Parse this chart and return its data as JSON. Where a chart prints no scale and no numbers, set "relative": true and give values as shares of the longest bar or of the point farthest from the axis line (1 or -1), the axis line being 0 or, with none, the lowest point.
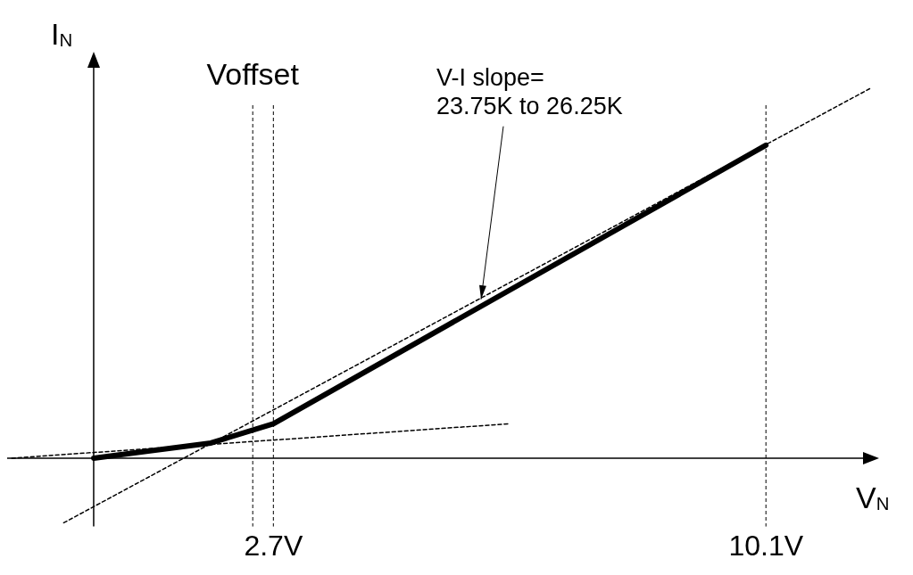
{
  "chart_data": {
    "type": "line",
    "relative": true,
    "xlabel": "V$_{N}$",
    "ylabel": "I$_{N}$",
    "xlim": [
      -1.3,
      11.8
    ],
    "xticks": [
      {
        "value": 2.7,
        "label": "2.7V"
      },
      {
        "value": 10.1,
        "label": "10.1V"
      }
    ],
    "grid": false,
    "legend": false,
    "marker": "none",
    "series": [
      {
        "color": "#000000",
        "x": [
          0,
          1.76,
          2.7,
          10.1
        ],
        "values": [
          0,
          0.041,
          0.093,
          0.847
        ],
        "line_style": "solid"
      },
      {
        "color": "#000000",
        "x": [
          -0.45,
          11.66
        ],
        "values": [
          -0.175,
          1
        ],
        "line_style": "dashed"
      },
      {
        "color": "#000000",
        "x": [
          -1.23,
          6.24
        ],
        "values": [
          0,
          0.093
        ],
        "line_style": "dashed"
      }
    ],
    "ref_lines": [
      {
        "axis": "x",
        "value": 2.39,
        "label": "Voffset",
        "line_style": "dashed"
      },
      {
        "axis": "x",
        "value": 2.7,
        "line_style": "dashed"
      },
      {
        "axis": "x",
        "value": 10.1,
        "line_style": "dashed"
      }
    ],
    "annotations": [
      {
        "text": "V-I slope=\n23.75K to 26.25K",
        "x": 5.82,
        "y": 0.43
      }
    ]
  }
}
